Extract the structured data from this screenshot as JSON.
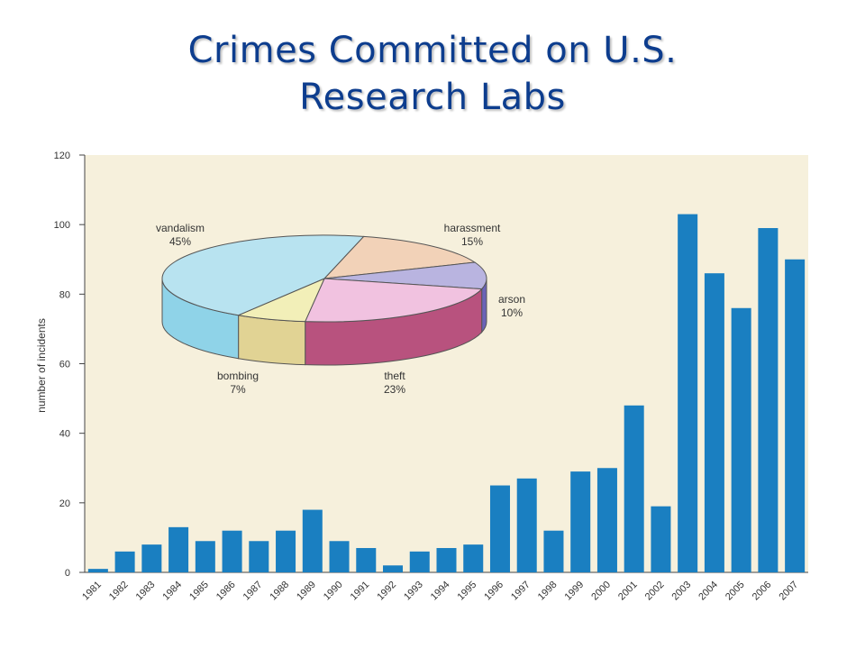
{
  "slide": {
    "title_line1": "Crimes Committed on U.S.",
    "title_line2": "Research Labs"
  },
  "colors": {
    "bar": "#1a7fc1",
    "plot_background": "#f6f0dc",
    "title": "#0d3d8e",
    "vandalism": "#b8e3f0",
    "harassment": "#f2d2b8",
    "arson": "#b9b4e0",
    "theft": "#f1c2e0",
    "bombing": "#f2efb8"
  },
  "chart_data": [
    {
      "type": "bar",
      "title": "",
      "xlabel": "",
      "ylabel": "number of incidents",
      "ylim": [
        0,
        120
      ],
      "yticks": [
        0,
        20,
        40,
        60,
        80,
        100,
        120
      ],
      "grid": false,
      "categories": [
        "1981",
        "1982",
        "1983",
        "1984",
        "1985",
        "1986",
        "1987",
        "1988",
        "1989",
        "1990",
        "1991",
        "1992",
        "1993",
        "1994",
        "1995",
        "1996",
        "1997",
        "1998",
        "1999",
        "2000",
        "2001",
        "2002",
        "2003",
        "2004",
        "2005",
        "2006",
        "2007"
      ],
      "values": [
        1,
        6,
        8,
        13,
        9,
        12,
        9,
        12,
        18,
        9,
        7,
        2,
        6,
        7,
        8,
        25,
        27,
        12,
        29,
        30,
        48,
        19,
        103,
        86,
        76,
        99,
        90
      ]
    },
    {
      "type": "pie",
      "slices": [
        {
          "label": "vandalism",
          "percent_label": "45%",
          "value": 45
        },
        {
          "label": "harassment",
          "percent_label": "15%",
          "value": 15
        },
        {
          "label": "arson",
          "percent_label": "10%",
          "value": 10
        },
        {
          "label": "theft",
          "percent_label": "23%",
          "value": 23
        },
        {
          "label": "bombing",
          "percent_label": "7%",
          "value": 7
        }
      ]
    }
  ]
}
